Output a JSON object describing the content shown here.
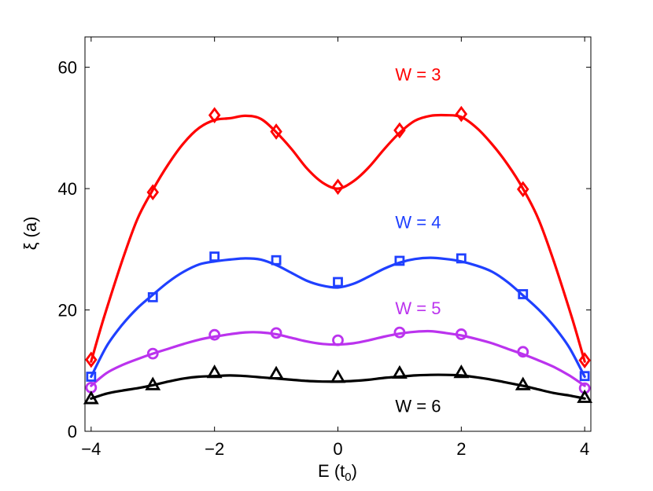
{
  "chart_data": {
    "type": "line",
    "title": "",
    "xlabel": "E (t",
    "xlabel_sub": "0",
    "xlabel_close": ")",
    "ylabel": "ξ (a)",
    "xlim": [
      -4.1,
      4.1
    ],
    "ylim": [
      0,
      65
    ],
    "xticks": [
      -4,
      -2,
      0,
      2,
      4
    ],
    "xtick_labels": [
      "−4",
      "−2",
      "0",
      "2",
      "4"
    ],
    "yticks": [
      0,
      20,
      40,
      60
    ],
    "ytick_labels": [
      "0",
      "20",
      "40",
      "60"
    ],
    "grid": false,
    "series": [
      {
        "name": "W = 3",
        "color": "#ff0000",
        "marker": "diamond",
        "points_x": [
          -4,
          -3,
          -2,
          -1,
          0,
          1,
          2,
          3,
          4
        ],
        "points_y": [
          11.8,
          39.4,
          52.1,
          49.4,
          40.3,
          49.6,
          52.3,
          39.9,
          11.7
        ],
        "curve_x": [
          -4,
          -3.8,
          -3.5,
          -3.25,
          -3,
          -2.75,
          -2.5,
          -2.25,
          -2,
          -1.75,
          -1.5,
          -1.25,
          -1,
          -0.75,
          -0.5,
          -0.25,
          0,
          0.25,
          0.5,
          0.75,
          1,
          1.25,
          1.5,
          1.75,
          2,
          2.25,
          2.5,
          2.75,
          3,
          3.25,
          3.5,
          3.8,
          4
        ],
        "curve_y": [
          11.5,
          18.5,
          28,
          35,
          39.8,
          44,
          47.5,
          50,
          51.3,
          51.6,
          52,
          51.5,
          49.3,
          46.5,
          43.3,
          41,
          40,
          41.2,
          43.5,
          46.5,
          49.2,
          51.2,
          52,
          52.1,
          51.8,
          50,
          47.3,
          44,
          40,
          35,
          28,
          18.5,
          11.5
        ]
      },
      {
        "name": "W = 4",
        "color": "#1f40ff",
        "marker": "square",
        "points_x": [
          -4,
          -3,
          -2,
          -1,
          0,
          1,
          2,
          3,
          4
        ],
        "points_y": [
          9,
          22.1,
          28.8,
          28.2,
          24.6,
          28.1,
          28.5,
          22.6,
          9.1
        ],
        "curve_x": [
          -4,
          -3.75,
          -3.5,
          -3.25,
          -3,
          -2.75,
          -2.5,
          -2.25,
          -2,
          -1.75,
          -1.5,
          -1.25,
          -1,
          -0.75,
          -0.5,
          -0.25,
          0,
          0.25,
          0.5,
          0.75,
          1,
          1.25,
          1.5,
          1.75,
          2,
          2.25,
          2.5,
          2.75,
          3,
          3.25,
          3.5,
          3.75,
          4
        ],
        "curve_y": [
          9,
          14,
          17.5,
          20.3,
          22.5,
          24.6,
          26.3,
          27.5,
          28,
          28.3,
          28.5,
          28.3,
          27.4,
          26.1,
          24.8,
          24,
          23.7,
          24.3,
          25.5,
          26.8,
          27.8,
          28.4,
          28.6,
          28.4,
          28,
          27.3,
          26.3,
          24.6,
          22.4,
          20.1,
          17.3,
          13.8,
          9
        ]
      },
      {
        "name": "W = 5",
        "color": "#bb33ee",
        "marker": "circle",
        "points_x": [
          -4,
          -3,
          -2,
          -1,
          0,
          1,
          2,
          3,
          4
        ],
        "points_y": [
          7.2,
          12.8,
          15.9,
          16.2,
          15,
          16.3,
          16,
          13.1,
          7.1
        ],
        "curve_x": [
          -4,
          -3.75,
          -3.5,
          -3.25,
          -3,
          -2.75,
          -2.5,
          -2.25,
          -2,
          -1.75,
          -1.5,
          -1.25,
          -1,
          -0.75,
          -0.5,
          -0.25,
          0,
          0.25,
          0.5,
          0.75,
          1,
          1.25,
          1.5,
          1.75,
          2,
          2.25,
          2.5,
          2.75,
          3,
          3.25,
          3.5,
          3.75,
          4
        ],
        "curve_y": [
          7.5,
          9.6,
          10.9,
          11.9,
          12.8,
          13.6,
          14.4,
          15.1,
          15.6,
          16,
          16.3,
          16.3,
          16,
          15.4,
          14.8,
          14.4,
          14.3,
          14.5,
          15,
          15.6,
          16.1,
          16.4,
          16.5,
          16.2,
          15.8,
          15.2,
          14.5,
          13.6,
          12.7,
          11.7,
          10.6,
          9.2,
          7.5
        ]
      },
      {
        "name": "W = 6",
        "color": "#000000",
        "marker": "triangle",
        "points_x": [
          -4,
          -3,
          -2,
          -1,
          0,
          1,
          2,
          3,
          4
        ],
        "points_y": [
          5.3,
          7.6,
          9.6,
          9.4,
          8.8,
          9.5,
          9.6,
          7.6,
          5.5
        ],
        "curve_x": [
          -4,
          -3.75,
          -3.5,
          -3.25,
          -3,
          -2.75,
          -2.5,
          -2.25,
          -2,
          -1.75,
          -1.5,
          -1.25,
          -1,
          -0.75,
          -0.5,
          -0.25,
          0,
          0.25,
          0.5,
          0.75,
          1,
          1.25,
          1.5,
          1.75,
          2,
          2.25,
          2.5,
          2.75,
          3,
          3.25,
          3.5,
          3.75,
          4
        ],
        "curve_y": [
          5.4,
          6.2,
          6.7,
          7.1,
          7.6,
          8.2,
          8.7,
          9,
          9.1,
          9.2,
          9.1,
          8.9,
          8.7,
          8.5,
          8.3,
          8.2,
          8.2,
          8.3,
          8.5,
          8.8,
          9,
          9.2,
          9.3,
          9.3,
          9.2,
          8.9,
          8.5,
          8,
          7.5,
          6.9,
          6.3,
          5.9,
          5.4
        ]
      }
    ],
    "annotations": [
      {
        "text": "W = 3",
        "x": 1.3,
        "y": 57.8,
        "color": "#ff0000"
      },
      {
        "text": "W = 4",
        "x": 1.3,
        "y": 33.5,
        "color": "#1f40ff"
      },
      {
        "text": "W = 5",
        "x": 1.3,
        "y": 19.3,
        "color": "#bb33ee"
      },
      {
        "text": "W = 6",
        "x": 1.3,
        "y": 3.2,
        "color": "#000000"
      }
    ]
  }
}
